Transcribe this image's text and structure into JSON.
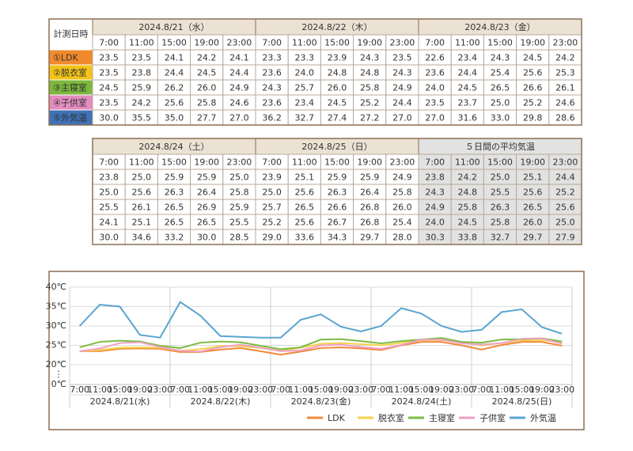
{
  "highlight": {
    "min": 30,
    "color": "#e0392e"
  },
  "table1": {
    "corner": "計測日時",
    "days": [
      {
        "label": "2024.8/21（水）"
      },
      {
        "label": "2024.8/22（木）"
      },
      {
        "label": "2024.8/23（金）"
      }
    ],
    "times": [
      "7:00",
      "11:00",
      "15:00",
      "19:00",
      "23:00"
    ],
    "rows": [
      {
        "label": "①LDK",
        "color": "#f08a2c",
        "values": [
          "23.5",
          "23.5",
          "24.1",
          "24.2",
          "24.1",
          "23.3",
          "23.3",
          "23.9",
          "24.3",
          "23.5",
          "22.6",
          "23.4",
          "24.3",
          "24.5",
          "24.2"
        ]
      },
      {
        "label": "②脱衣室",
        "color": "#f2c318",
        "values": [
          "23.5",
          "23.8",
          "24.4",
          "24.5",
          "24.4",
          "23.6",
          "24.0",
          "24.8",
          "24.8",
          "24.3",
          "23.6",
          "24.4",
          "25.4",
          "25.6",
          "25.3"
        ]
      },
      {
        "label": "③主寝室",
        "color": "#7cb83e",
        "values": [
          "24.5",
          "25.9",
          "26.2",
          "26.0",
          "24.9",
          "24.3",
          "25.7",
          "26.0",
          "25.8",
          "24.9",
          "24.0",
          "24.5",
          "26.5",
          "26.6",
          "26.1"
        ]
      },
      {
        "label": "④子供室",
        "color": "#e48cbf",
        "values": [
          "23.5",
          "24.2",
          "25.6",
          "25.8",
          "24.6",
          "23.6",
          "23.4",
          "24.5",
          "25.2",
          "24.4",
          "23.5",
          "23.7",
          "25.0",
          "25.2",
          "24.6"
        ]
      },
      {
        "label": "⑤外気温",
        "color": "#3f72b6",
        "values": [
          "30.0",
          "35.5",
          "35.0",
          "27.7",
          "27.0",
          "36.2",
          "32.7",
          "27.4",
          "27.2",
          "27.0",
          "27.0",
          "31.6",
          "33.0",
          "29.8",
          "28.6"
        ]
      }
    ]
  },
  "table2": {
    "days": [
      {
        "label": "2024.8/24（土）"
      },
      {
        "label": "2024.8/25（日）"
      },
      {
        "label": "５日間の平均気温",
        "fill": "#e2e2e2"
      }
    ],
    "times": [
      "7:00",
      "11:00",
      "15:00",
      "19:00",
      "23:00"
    ],
    "rows": [
      {
        "values": [
          "23.8",
          "25.0",
          "25.9",
          "25.9",
          "25.0",
          "23.9",
          "25.1",
          "25.9",
          "25.9",
          "24.9",
          "23.8",
          "24.2",
          "25.0",
          "25.1",
          "24.4"
        ]
      },
      {
        "values": [
          "25.0",
          "25.6",
          "26.3",
          "26.4",
          "25.8",
          "25.0",
          "25.6",
          "26.3",
          "26.4",
          "25.8",
          "24.3",
          "24.8",
          "25.5",
          "25.6",
          "25.2"
        ]
      },
      {
        "values": [
          "25.5",
          "26.1",
          "26.5",
          "26.9",
          "25.9",
          "25.7",
          "26.5",
          "26.6",
          "26.8",
          "26.0",
          "24.9",
          "25.8",
          "26.3",
          "26.5",
          "25.6"
        ]
      },
      {
        "values": [
          "24.1",
          "25.1",
          "26.5",
          "26.5",
          "25.5",
          "25.2",
          "25.6",
          "26.7",
          "26.8",
          "25.4",
          "24.0",
          "24.5",
          "25.8",
          "26.0",
          "25.0"
        ]
      },
      {
        "values": [
          "30.0",
          "34.6",
          "33.2",
          "30.0",
          "28.5",
          "29.0",
          "33.6",
          "34.3",
          "29.7",
          "28.0",
          "30.3",
          "33.8",
          "32.7",
          "29.7",
          "27.9"
        ]
      }
    ]
  },
  "chart_data": {
    "type": "line",
    "categories": [
      "7:00",
      "11:00",
      "15:00",
      "19:00",
      "23:00",
      "7:00",
      "11:00",
      "15:00",
      "19:00",
      "23:00",
      "7:00",
      "11:00",
      "15:00",
      "19:00",
      "23:00",
      "7:00",
      "11:00",
      "15:00",
      "19:00",
      "23:00",
      "7:00",
      "11:00",
      "15:00",
      "19:00",
      "23:00"
    ],
    "groups": [
      "2024.8/21(水)",
      "2024.8/22(木)",
      "2024.8/23(金)",
      "2024.8/24(土)",
      "2024.8/25(日)"
    ],
    "ylim": [
      20,
      40
    ],
    "axis_break": true,
    "grid": true,
    "yticks": [
      {
        "value": 0,
        "label": "0℃"
      },
      {
        "value": 20,
        "label": "20℃"
      },
      {
        "value": 25,
        "label": "25℃"
      },
      {
        "value": 30,
        "label": "30℃"
      },
      {
        "value": 35,
        "label": "35℃"
      },
      {
        "value": 40,
        "label": "40℃"
      }
    ],
    "series": [
      {
        "name": "LDK",
        "color": "#f08a3c",
        "values": [
          23.5,
          23.5,
          24.1,
          24.2,
          24.1,
          23.3,
          23.3,
          23.9,
          24.3,
          23.5,
          22.6,
          23.4,
          24.3,
          24.5,
          24.2,
          23.8,
          25.0,
          25.9,
          25.9,
          25.0,
          23.9,
          25.1,
          25.9,
          25.9,
          24.9
        ]
      },
      {
        "name": "脱衣室",
        "color": "#f5d24a",
        "values": [
          23.5,
          23.8,
          24.4,
          24.5,
          24.4,
          23.6,
          24.0,
          24.8,
          24.8,
          24.3,
          23.6,
          24.4,
          25.4,
          25.6,
          25.3,
          25.0,
          25.6,
          26.3,
          26.4,
          25.8,
          25.0,
          25.6,
          26.3,
          26.4,
          25.8
        ]
      },
      {
        "name": "主寝室",
        "color": "#7dbb42",
        "values": [
          24.5,
          25.9,
          26.2,
          26.0,
          24.9,
          24.3,
          25.7,
          26.0,
          25.8,
          24.9,
          24.0,
          24.5,
          26.5,
          26.6,
          26.1,
          25.5,
          26.1,
          26.5,
          26.9,
          25.9,
          25.7,
          26.5,
          26.6,
          26.8,
          26.0
        ]
      },
      {
        "name": "子供室",
        "color": "#f0a0c8",
        "values": [
          23.5,
          24.2,
          25.6,
          25.8,
          24.6,
          23.6,
          23.4,
          24.5,
          25.2,
          24.4,
          23.5,
          23.7,
          25.0,
          25.2,
          24.6,
          24.1,
          25.1,
          26.5,
          26.5,
          25.5,
          25.2,
          25.6,
          26.7,
          26.8,
          25.4
        ]
      },
      {
        "name": "外気温",
        "color": "#5aa5d0",
        "values": [
          30.0,
          35.5,
          35.0,
          27.7,
          27.0,
          36.2,
          32.7,
          27.4,
          27.2,
          27.0,
          27.0,
          31.6,
          33.0,
          29.8,
          28.6,
          30.0,
          34.6,
          33.2,
          30.0,
          28.5,
          29.0,
          33.6,
          34.3,
          29.7,
          28.0
        ]
      }
    ]
  }
}
